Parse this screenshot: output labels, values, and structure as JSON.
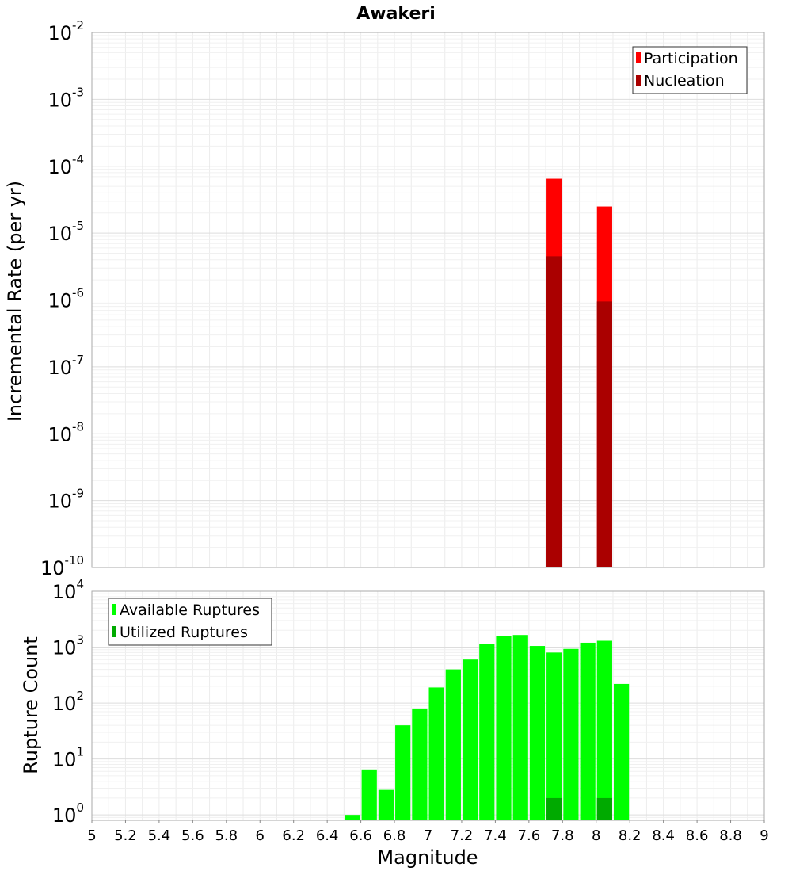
{
  "chart_data": [
    {
      "type": "bar",
      "title": "Awakeri",
      "ylabel": "Incremental Rate (per yr)",
      "yscale": "log",
      "ylim": [
        1e-10,
        0.01
      ],
      "y_ticks": [
        {
          "base": "10",
          "exp": "-10"
        },
        {
          "base": "10",
          "exp": "-9"
        },
        {
          "base": "10",
          "exp": "-8"
        },
        {
          "base": "10",
          "exp": "-7"
        },
        {
          "base": "10",
          "exp": "-6"
        },
        {
          "base": "10",
          "exp": "-5"
        },
        {
          "base": "10",
          "exp": "-4"
        },
        {
          "base": "10",
          "exp": "-3"
        },
        {
          "base": "10",
          "exp": "-2"
        }
      ],
      "xlim": [
        5,
        9
      ],
      "bar_width": 0.1,
      "legend_position": "top-right",
      "grid": true,
      "series": [
        {
          "name": "Participation",
          "color": "#ff0000",
          "x": [
            7.75,
            8.05
          ],
          "values": [
            6.5e-05,
            2.5e-05
          ]
        },
        {
          "name": "Nucleation",
          "color": "#aa0000",
          "x": [
            7.75,
            8.05
          ],
          "values": [
            4.5e-06,
            9.5e-07
          ]
        }
      ]
    },
    {
      "type": "bar",
      "ylabel": "Rupture Count",
      "xlabel": "Magnitude",
      "yscale": "log",
      "ylim": [
        0.8,
        10000
      ],
      "y_ticks": [
        {
          "base": "10",
          "exp": "0"
        },
        {
          "base": "10",
          "exp": "1"
        },
        {
          "base": "10",
          "exp": "2"
        },
        {
          "base": "10",
          "exp": "3"
        },
        {
          "base": "10",
          "exp": "4"
        }
      ],
      "xlim": [
        5,
        9
      ],
      "x_ticks": [
        "5",
        "5.2",
        "5.4",
        "5.6",
        "5.8",
        "6",
        "6.2",
        "6.4",
        "6.6",
        "6.8",
        "7",
        "7.2",
        "7.4",
        "7.6",
        "7.8",
        "8",
        "8.2",
        "8.4",
        "8.6",
        "8.8",
        "9"
      ],
      "bar_width": 0.1,
      "legend_position": "top-left",
      "grid": true,
      "series": [
        {
          "name": "Available Ruptures",
          "color": "#00ff00",
          "x": [
            6.55,
            6.65,
            6.75,
            6.85,
            6.95,
            7.05,
            7.15,
            7.25,
            7.35,
            7.45,
            7.55,
            7.65,
            7.75,
            7.85,
            7.95,
            8.05,
            8.15
          ],
          "values": [
            1,
            6.5,
            2.8,
            40,
            80,
            190,
            400,
            600,
            1150,
            1600,
            1650,
            1050,
            800,
            930,
            1200,
            1300,
            220
          ]
        },
        {
          "name": "Utilized Ruptures",
          "color": "#00aa00",
          "x": [
            7.75,
            8.05
          ],
          "values": [
            2,
            2
          ]
        }
      ]
    }
  ]
}
